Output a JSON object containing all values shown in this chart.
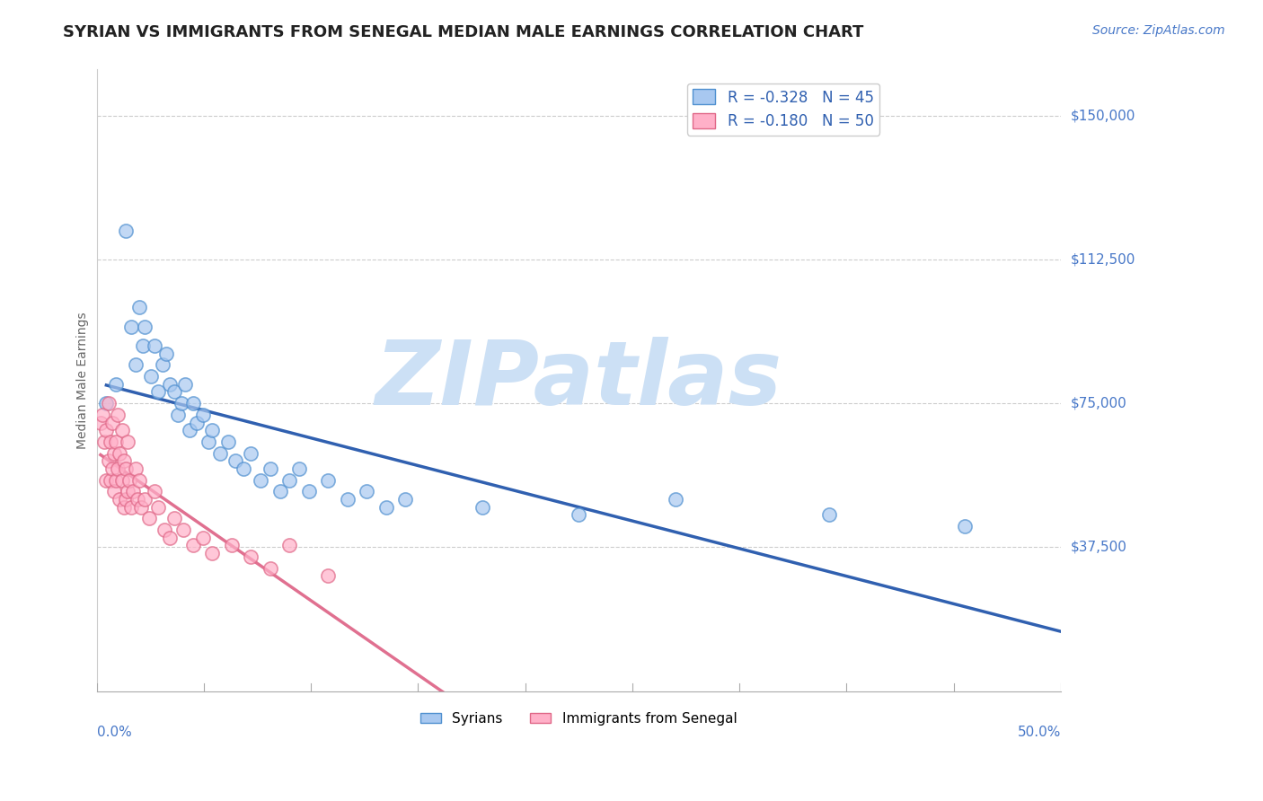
{
  "title": "SYRIAN VS IMMIGRANTS FROM SENEGAL MEDIAN MALE EARNINGS CORRELATION CHART",
  "source": "Source: ZipAtlas.com",
  "ylabel": "Median Male Earnings",
  "yticks": [
    0,
    37500,
    75000,
    112500,
    150000
  ],
  "ytick_labels": [
    "",
    "$37,500",
    "$75,000",
    "$112,500",
    "$150,000"
  ],
  "xlim": [
    0.0,
    0.5
  ],
  "ylim": [
    0,
    162000
  ],
  "syrians_color": "#a8c8f0",
  "syrians_edge_color": "#5090d0",
  "senegal_color": "#ffb0c8",
  "senegal_edge_color": "#e06888",
  "syrian_line_color": "#3060b0",
  "senegal_solid_color": "#e07090",
  "senegal_dash_color": "#f0b0c0",
  "watermark": "ZIPatlas",
  "watermark_color": "#cce0f5",
  "title_fontsize": 13,
  "source_fontsize": 10,
  "axis_label_color": "#4878c8",
  "legend_R1": "R = -0.328   N = 45",
  "legend_R2": "R = -0.180   N = 50",
  "syrians_x": [
    0.005,
    0.01,
    0.015,
    0.018,
    0.02,
    0.022,
    0.024,
    0.025,
    0.028,
    0.03,
    0.032,
    0.034,
    0.036,
    0.038,
    0.04,
    0.042,
    0.044,
    0.046,
    0.048,
    0.05,
    0.052,
    0.055,
    0.058,
    0.06,
    0.064,
    0.068,
    0.072,
    0.076,
    0.08,
    0.085,
    0.09,
    0.095,
    0.1,
    0.105,
    0.11,
    0.12,
    0.13,
    0.14,
    0.15,
    0.16,
    0.2,
    0.25,
    0.3,
    0.38,
    0.45
  ],
  "syrians_y": [
    75000,
    80000,
    120000,
    95000,
    85000,
    100000,
    90000,
    95000,
    82000,
    90000,
    78000,
    85000,
    88000,
    80000,
    78000,
    72000,
    75000,
    80000,
    68000,
    75000,
    70000,
    72000,
    65000,
    68000,
    62000,
    65000,
    60000,
    58000,
    62000,
    55000,
    58000,
    52000,
    55000,
    58000,
    52000,
    55000,
    50000,
    52000,
    48000,
    50000,
    48000,
    46000,
    50000,
    46000,
    43000
  ],
  "senegal_x": [
    0.002,
    0.003,
    0.004,
    0.005,
    0.005,
    0.006,
    0.006,
    0.007,
    0.007,
    0.008,
    0.008,
    0.009,
    0.009,
    0.01,
    0.01,
    0.011,
    0.011,
    0.012,
    0.012,
    0.013,
    0.013,
    0.014,
    0.014,
    0.015,
    0.015,
    0.016,
    0.016,
    0.017,
    0.018,
    0.019,
    0.02,
    0.021,
    0.022,
    0.023,
    0.025,
    0.027,
    0.03,
    0.032,
    0.035,
    0.038,
    0.04,
    0.045,
    0.05,
    0.055,
    0.06,
    0.07,
    0.08,
    0.09,
    0.1,
    0.12
  ],
  "senegal_y": [
    70000,
    72000,
    65000,
    68000,
    55000,
    75000,
    60000,
    65000,
    55000,
    70000,
    58000,
    62000,
    52000,
    65000,
    55000,
    72000,
    58000,
    62000,
    50000,
    68000,
    55000,
    60000,
    48000,
    58000,
    50000,
    65000,
    52000,
    55000,
    48000,
    52000,
    58000,
    50000,
    55000,
    48000,
    50000,
    45000,
    52000,
    48000,
    42000,
    40000,
    45000,
    42000,
    38000,
    40000,
    36000,
    38000,
    35000,
    32000,
    38000,
    30000
  ]
}
